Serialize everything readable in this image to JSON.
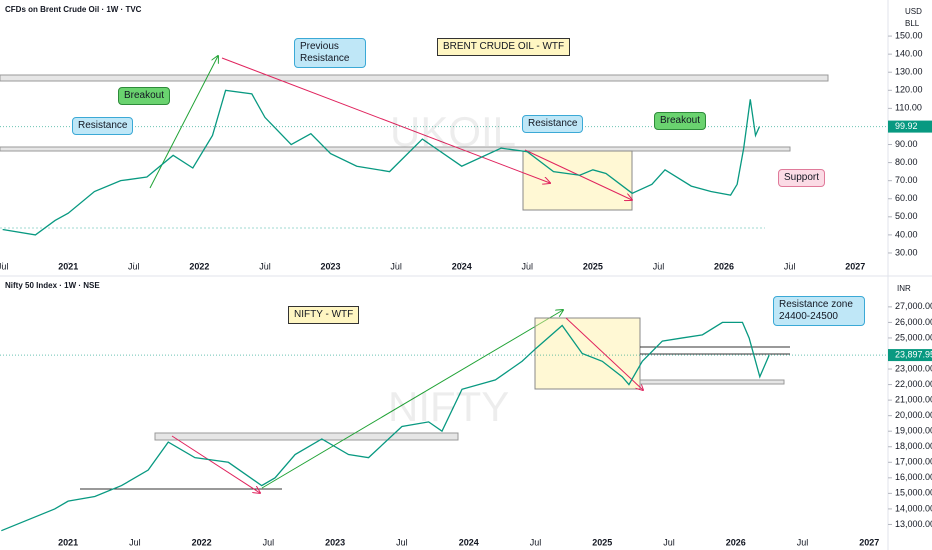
{
  "chart_data": [
    {
      "type": "line",
      "title": "CFDs on Brent Crude Oil · 1W · TVC",
      "currency": "USD",
      "unit": "BLL",
      "watermark": "UKOIL",
      "x": [
        2020.5,
        2020.75,
        2020.9,
        2021.0,
        2021.2,
        2021.4,
        2021.6,
        2021.8,
        2021.95,
        2022.1,
        2022.2,
        2022.4,
        2022.5,
        2022.7,
        2022.85,
        2023.0,
        2023.2,
        2023.45,
        2023.7,
        2023.8,
        2024.0,
        2024.3,
        2024.5,
        2024.7,
        2024.9,
        2025.0,
        2025.1,
        2025.3,
        2025.45,
        2025.55,
        2025.75,
        2025.9,
        2026.05,
        2026.1,
        2026.15,
        2026.2,
        2026.24,
        2026.27
      ],
      "series": [
        {
          "name": "Brent",
          "color": "#089981",
          "values": [
            43,
            40,
            48,
            52,
            64,
            70,
            72,
            84,
            77,
            95,
            120,
            118,
            105,
            90,
            96,
            85,
            78,
            75,
            93,
            88,
            78,
            88,
            86,
            75,
            73,
            76,
            74,
            63,
            68,
            76,
            67,
            64,
            62,
            68,
            88,
            115,
            95,
            99.92
          ]
        }
      ],
      "xlim": [
        2020.48,
        2027.25
      ],
      "ylim": [
        25,
        160
      ],
      "xticks": [
        {
          "value": 2020.5,
          "label": "Jul"
        },
        2021,
        {
          "value": 2021.5,
          "label": "Jul"
        },
        2022,
        {
          "value": 2022.5,
          "label": "Jul"
        },
        2023,
        {
          "value": 2023.5,
          "label": "Jul"
        },
        2024,
        {
          "value": 2024.5,
          "label": "Jul"
        },
        2025,
        {
          "value": 2025.5,
          "label": "Jul"
        },
        2026,
        {
          "value": 2026.5,
          "label": "Jul"
        },
        2027
      ],
      "yticks": [
        {
          "value": 30,
          "label": "30.00"
        },
        {
          "value": 40,
          "label": "40.00"
        },
        {
          "value": 50,
          "label": "50.00"
        },
        {
          "value": 60,
          "label": "60.00"
        },
        {
          "value": 70,
          "label": "70.00"
        },
        {
          "value": 80,
          "label": "80.00"
        },
        {
          "value": 90,
          "label": "90.00"
        },
        {
          "value": 100,
          "label": "100.00"
        },
        {
          "value": 110,
          "label": "110.00"
        },
        {
          "value": 120,
          "label": "120.00"
        },
        {
          "value": 130,
          "label": "130.00"
        },
        {
          "value": 140,
          "label": "140.00"
        },
        {
          "value": 150,
          "label": "150.00"
        }
      ],
      "annotations": [
        "BRENT CRUDE OIL - WTF",
        "Previous Resistance",
        "Breakout",
        "Resistance",
        "Resistance",
        "Breakout",
        "Support"
      ]
    },
    {
      "type": "line",
      "title": "Nifty 50 Index · 1W · NSE",
      "currency": "INR",
      "watermark": "NIFTY",
      "x": [
        2020.5,
        2020.7,
        2020.9,
        2021.0,
        2021.2,
        2021.4,
        2021.6,
        2021.75,
        2021.95,
        2022.2,
        2022.45,
        2022.55,
        2022.7,
        2022.9,
        2023.1,
        2023.25,
        2023.5,
        2023.7,
        2023.8,
        2023.95,
        2024.2,
        2024.4,
        2024.5,
        2024.7,
        2024.85,
        2025.0,
        2025.15,
        2025.2,
        2025.3,
        2025.45,
        2025.6,
        2025.75,
        2025.9,
        2026.05,
        2026.1,
        2026.18,
        2026.25
      ],
      "series": [
        {
          "name": "Nifty 50",
          "color": "#089981",
          "values": [
            12600,
            13300,
            14000,
            14500,
            14800,
            15500,
            16500,
            18300,
            17300,
            17000,
            15500,
            16000,
            17500,
            18500,
            17500,
            17300,
            19300,
            19600,
            19000,
            21700,
            22300,
            23500,
            24300,
            25800,
            24000,
            23500,
            22500,
            22000,
            23500,
            24800,
            25000,
            25200,
            26000,
            26000,
            25000,
            22500,
            23897.95
          ],
          "value_labels": [
            null,
            null,
            null,
            null,
            null,
            null,
            null,
            null,
            null,
            null,
            null,
            null,
            null,
            null,
            null,
            null,
            null,
            null,
            null,
            null,
            null,
            null,
            null,
            null,
            null,
            null,
            null,
            null,
            null,
            null,
            null,
            null,
            null,
            null,
            null,
            null,
            "23,897.95"
          ]
        }
      ],
      "xlim": [
        2020.49,
        2027.14
      ],
      "ylim": [
        12000,
        28600
      ],
      "xticks": [
        2021,
        {
          "value": 2021.5,
          "label": "Jul"
        },
        2022,
        {
          "value": 2022.5,
          "label": "Jul"
        },
        2023,
        {
          "value": 2023.5,
          "label": "Jul"
        },
        2024,
        {
          "value": 2024.5,
          "label": "Jul"
        },
        2025,
        {
          "value": 2025.5,
          "label": "Jul"
        },
        2026,
        {
          "value": 2026.5,
          "label": "Jul"
        },
        2027
      ],
      "yticks": [
        {
          "value": 13000,
          "label": "13,000.00"
        },
        {
          "value": 14000,
          "label": "14,000.00"
        },
        {
          "value": 15000,
          "label": "15,000.00"
        },
        {
          "value": 16000,
          "label": "16,000.00"
        },
        {
          "value": 17000,
          "label": "17,000.00"
        },
        {
          "value": 18000,
          "label": "18,000.00"
        },
        {
          "value": 19000,
          "label": "19,000.00"
        },
        {
          "value": 20000,
          "label": "20,000.00"
        },
        {
          "value": 21000,
          "label": "21,000.00"
        },
        {
          "value": 22000,
          "label": "22,000.00"
        },
        {
          "value": 23000,
          "label": "23,000.00"
        },
        {
          "value": 24000,
          "label": "24,000.00"
        },
        {
          "value": 25000,
          "label": "25,000.00"
        },
        {
          "value": 26000,
          "label": "26,000.00"
        },
        {
          "value": 27000,
          "label": "27,000.00"
        }
      ],
      "annotations": [
        "NIFTY - WTF",
        "Resistance zone 24400-24500"
      ]
    }
  ]
}
